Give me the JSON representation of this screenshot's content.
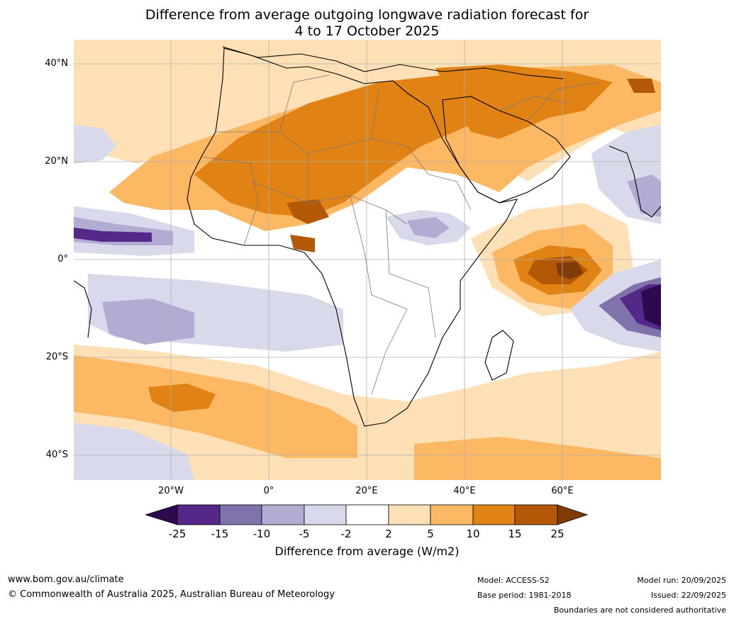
{
  "title": {
    "line1": "Difference from average outgoing longwave radiation forecast for",
    "line2": "4 to 17 October 2025"
  },
  "map": {
    "lat_labels": [
      "40°N",
      "20°N",
      "0°",
      "20°S",
      "40°S"
    ],
    "lon_labels": [
      "20°W",
      "0°",
      "20°E",
      "40°E",
      "60°E"
    ]
  },
  "legend": {
    "ticks": [
      "-25",
      "-15",
      "-10",
      "-5",
      "-2",
      "2",
      "5",
      "10",
      "15",
      "25"
    ],
    "colors": [
      "#2d0a4e",
      "#542788",
      "#8073ac",
      "#b2abd2",
      "#d8daeb",
      "#ffffff",
      "#fee0b6",
      "#fdb863",
      "#e08214",
      "#b35806",
      "#7f3b08"
    ],
    "label": "Difference from average (W/m2)"
  },
  "footer": {
    "website": "www.bom.gov.au/climate",
    "copyright": "© Commonwealth of Australia 2025, Australian Bureau of Meteorology",
    "model": "Model: ACCESS-S2",
    "base_period": "Base period: 1981-2018",
    "model_run": "Model run: 20/09/2025",
    "issued": "Issued: 22/09/2025",
    "disclaimer": "Boundaries are not considered authoritative"
  }
}
